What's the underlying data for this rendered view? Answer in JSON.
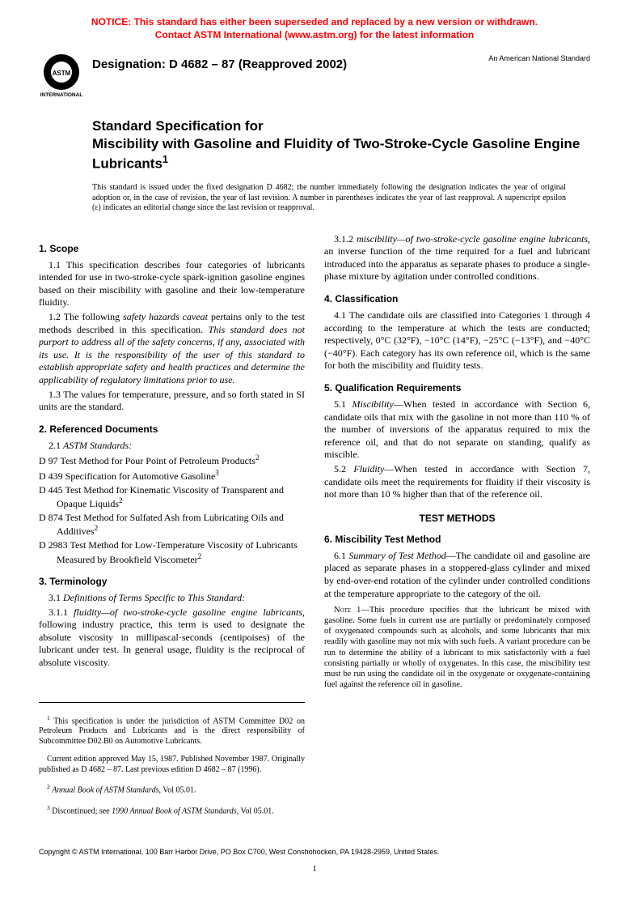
{
  "notice": {
    "line1": "NOTICE: This standard has either been superseded and replaced by a new version or withdrawn.",
    "line2": "Contact ASTM International (www.astm.org) for the latest information"
  },
  "header": {
    "designation": "Designation: D 4682 – 87 (Reapproved 2002)",
    "ansi_note": "An American National Standard",
    "logo_text_top": "ASTM",
    "logo_text_bottom": "INTERNATIONAL"
  },
  "title": {
    "line1": "Standard Specification for",
    "line2": "Miscibility with Gasoline and Fluidity of Two-Stroke-Cycle Gasoline Engine Lubricants",
    "sup": "1"
  },
  "issue_note": "This standard is issued under the fixed designation D 4682; the number immediately following the designation indicates the year of original adoption or, in the case of revision, the year of last revision. A number in parentheses indicates the year of last reapproval. A superscript epsilon (ε) indicates an editorial change since the last revision or reapproval.",
  "sections": {
    "scope": {
      "heading": "1. Scope",
      "p1": "1.1 This specification describes four categories of lubricants intended for use in two-stroke-cycle spark-ignition gasoline engines based on their miscibility with gasoline and their low-temperature fluidity.",
      "p2_prefix": "1.2 The following ",
      "p2_italic1": "safety hazards caveat",
      "p2_mid": " pertains only to the test methods described in this specification. ",
      "p2_italic2": "This standard does not purport to address all of the safety concerns, if any, associated with its use. It is the responsibility of the user of this standard to establish appropriate safety and health practices and determine the applicability of regulatory limitations prior to use.",
      "p3": "1.3 The values for temperature, pressure, and so forth stated in SI units are the standard."
    },
    "refs": {
      "heading": "2. Referenced Documents",
      "subheading_prefix": "2.1 ",
      "subheading_italic": "ASTM Standards:",
      "items": [
        {
          "text": "D 97  Test Method for Pour Point of Petroleum Products",
          "sup": "2"
        },
        {
          "text": "D 439  Specification for Automotive Gasoline",
          "sup": "3"
        },
        {
          "text": "D 445  Test Method for Kinematic Viscosity of Transparent and Opaque Liquids",
          "sup": "2"
        },
        {
          "text": "D 874  Test Method for Sulfated Ash from Lubricating Oils and Additives",
          "sup": "2"
        },
        {
          "text": "D 2983 Test Method for Low-Temperature Viscosity of Lubricants Measured by Brookfield Viscometer",
          "sup": "2"
        }
      ]
    },
    "terminology": {
      "heading": "3. Terminology",
      "p31_prefix": "3.1 ",
      "p31_italic": "Definitions of Terms Specific to This Standard:",
      "p311_prefix": "3.1.1 ",
      "p311_italic": "fluidity—of two-stroke-cycle gasoline engine lubricants",
      "p311_rest": ", following industry practice, this term is used to designate the absolute viscosity in millipascal·seconds (centipoises) of the lubricant under test. In general usage, fluidity is the reciprocal of absolute viscosity.",
      "p312_prefix": "3.1.2 ",
      "p312_italic": "miscibility—of two-stroke-cycle gasoline engine lubricants",
      "p312_rest": ", an inverse function of the time required for a fuel and lubricant introduced into the apparatus as separate phases to produce a single-phase mixture by agitation under controlled conditions."
    },
    "classification": {
      "heading": "4. Classification",
      "p1": "4.1 The candidate oils are classified into Categories 1 through 4 according to the temperature at which the tests are conducted; respectively, 0°C (32°F), −10°C (14°F), −25°C (−13°F), and −40°C (−40°F). Each category has its own reference oil, which is the same for both the miscibility and fluidity tests."
    },
    "qualification": {
      "heading": "5. Qualification Requirements",
      "p51_prefix": "5.1 ",
      "p51_italic": "Miscibility",
      "p51_rest": "—When tested in accordance with Section 6, candidate oils that mix with the gasoline in not more than 110 % of the number of inversions of the apparatus required to mix the reference oil, and that do not separate on standing, qualify as miscible.",
      "p52_prefix": "5.2 ",
      "p52_italic": "Fluidity",
      "p52_rest": "—When tested in accordance with Section 7, candidate oils meet the requirements for fluidity if their viscosity is not more than 10 % higher than that of the reference oil."
    },
    "test_methods_heading": "TEST METHODS",
    "miscibility_test": {
      "heading": "6. Miscibility Test Method",
      "p61_prefix": "6.1 ",
      "p61_italic": "Summary of Test Method",
      "p61_rest": "—The candidate oil and gasoline are placed as separate phases in a stoppered-glass cylinder and mixed by end-over-end rotation of the cylinder under controlled conditions at the temperature appropriate to the category of the oil.",
      "note_label": "Note 1",
      "note_text": "—This procedure specifies that the lubricant be mixed with gasoline. Some fuels in current use are partially or predominately composed of oxygenated compounds such as alcohols, and some lubricants that mix readily with gasoline may not mix with such fuels. A variant procedure can be run to determine the ability of a lubricant to mix satisfactorily with a fuel consisting partially or wholly of oxygenates. In this case, the miscibility test must be run using the candidate oil in the oxygenate or oxygenate-containing fuel against the reference oil in gasoline."
    }
  },
  "footnotes": {
    "f1": " This specification is under the jurisdiction of ASTM Committee D02 on Petroleum Products and Lubricants and is the direct responsibility of Subcommittee D02.B0 on Automotive Lubricants.",
    "f1b": "Current edition approved May 15, 1987. Published November 1987. Originally published as D 4682 – 87. Last previous edition D 4682 – 87 (1996).",
    "f2_italic": "Annual Book of ASTM Standards",
    "f2_rest": ", Vol 05.01.",
    "f3_prefix": " Discontinued; see ",
    "f3_italic": "1990 Annual Book of ASTM Standards",
    "f3_rest": ", Vol 05.01."
  },
  "copyright": "Copyright © ASTM International, 100 Barr Harbor Drive, PO Box C700, West Conshohocken, PA 19428-2959, United States.",
  "page_number": "1"
}
